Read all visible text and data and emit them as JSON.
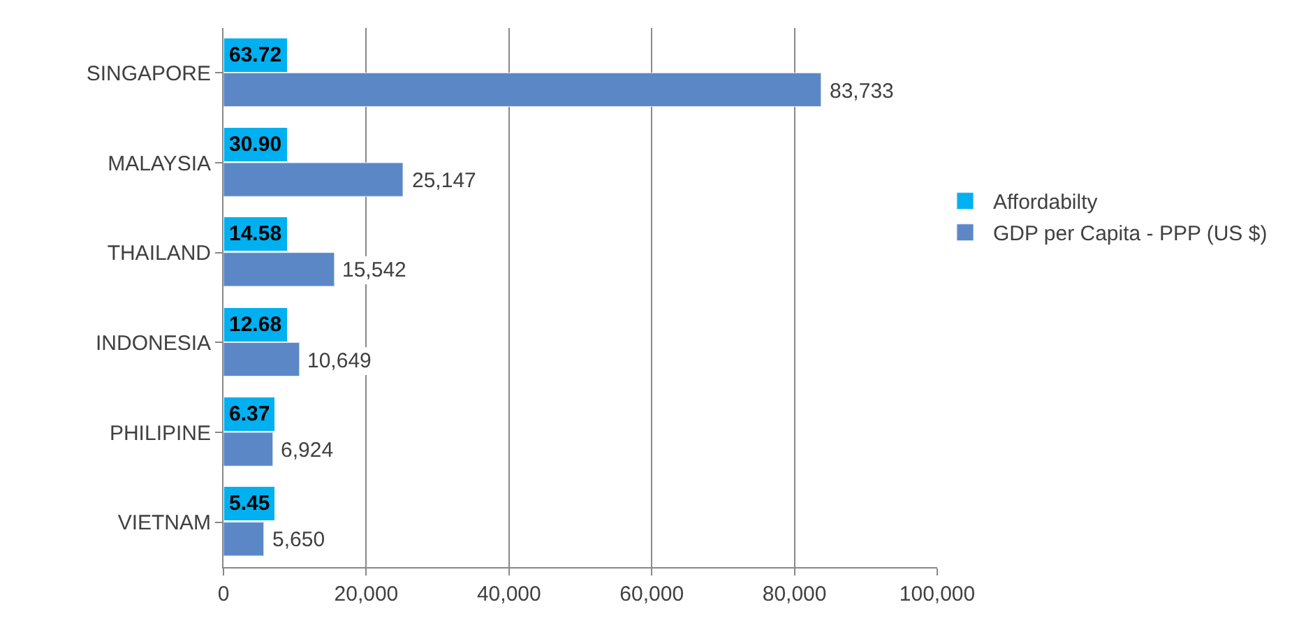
{
  "chart_data": {
    "type": "bar",
    "orientation": "horizontal",
    "categories": [
      "SINGAPORE",
      "MALAYSIA",
      "THAILAND",
      "INDONESIA",
      "PHILIPINE",
      "VIETNAM"
    ],
    "series": [
      {
        "name": "Affordabilty",
        "color": "#00b0f0",
        "values": [
          63.72,
          30.9,
          14.58,
          12.68,
          6.37,
          5.45
        ],
        "value_labels": [
          "63.72",
          "30.90",
          "14.58",
          "12.68",
          "6.37",
          "5.45"
        ]
      },
      {
        "name": "GDP per Capita - PPP (US $)",
        "color": "#5b87c6",
        "values": [
          83733,
          25147,
          15542,
          10649,
          6924,
          5650
        ],
        "value_labels": [
          "83,733",
          "25,147",
          "15,542",
          "10,649",
          "6,924",
          "5,650"
        ]
      }
    ],
    "xlim": [
      0,
      100000
    ],
    "xticks": [
      {
        "value": 0,
        "label": "0"
      },
      {
        "value": 20000,
        "label": "20,000"
      },
      {
        "value": 40000,
        "label": "40,000"
      },
      {
        "value": 60000,
        "label": "60,000"
      },
      {
        "value": 80000,
        "label": "80,000"
      },
      {
        "value": 100000,
        "label": "100,000"
      }
    ],
    "grid": "x",
    "legend": "right"
  }
}
